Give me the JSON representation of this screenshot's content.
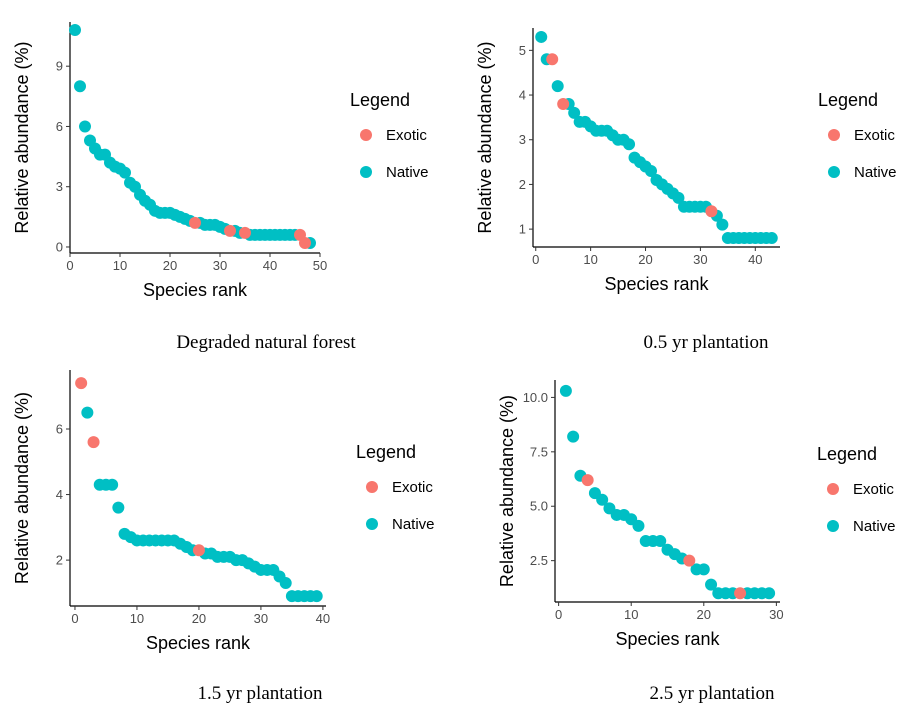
{
  "colors": {
    "exotic": "#F8766D",
    "native": "#00BFC4",
    "axis": "#000000",
    "tick_text": "#4D4D4D"
  },
  "legend": {
    "title": "Legend",
    "entries": [
      {
        "label": "Exotic",
        "color": "#F8766D"
      },
      {
        "label": "Native",
        "color": "#00BFC4"
      }
    ]
  },
  "chart_data": [
    {
      "type": "scatter",
      "caption": "Degraded natural forest",
      "xlabel": "Species rank",
      "ylabel": "Relative abundance (%)",
      "xlim": [
        0,
        50
      ],
      "ylim": [
        -0.3,
        11.2
      ],
      "xticks": [
        0,
        10,
        20,
        30,
        40,
        50
      ],
      "yticks": [
        0,
        3,
        6,
        9
      ],
      "legend_position": "right",
      "grid": false,
      "series": [
        {
          "name": "Native",
          "points": [
            [
              1,
              10.8
            ],
            [
              2,
              8.0
            ],
            [
              3,
              6.0
            ],
            [
              4,
              5.3
            ],
            [
              5,
              4.9
            ],
            [
              6,
              4.6
            ],
            [
              7,
              4.6
            ],
            [
              8,
              4.2
            ],
            [
              9,
              4.0
            ],
            [
              10,
              3.9
            ],
            [
              11,
              3.7
            ],
            [
              12,
              3.2
            ],
            [
              13,
              3.0
            ],
            [
              14,
              2.6
            ],
            [
              15,
              2.3
            ],
            [
              16,
              2.1
            ],
            [
              17,
              1.8
            ],
            [
              18,
              1.7
            ],
            [
              19,
              1.7
            ],
            [
              20,
              1.7
            ],
            [
              21,
              1.6
            ],
            [
              22,
              1.5
            ],
            [
              23,
              1.4
            ],
            [
              24,
              1.3
            ],
            [
              26,
              1.2
            ],
            [
              27,
              1.1
            ],
            [
              28,
              1.1
            ],
            [
              29,
              1.1
            ],
            [
              30,
              1.0
            ],
            [
              31,
              0.9
            ],
            [
              33,
              0.8
            ],
            [
              34,
              0.7
            ],
            [
              36,
              0.6
            ],
            [
              37,
              0.6
            ],
            [
              38,
              0.6
            ],
            [
              39,
              0.6
            ],
            [
              40,
              0.6
            ],
            [
              41,
              0.6
            ],
            [
              42,
              0.6
            ],
            [
              43,
              0.6
            ],
            [
              44,
              0.6
            ],
            [
              45,
              0.6
            ],
            [
              48,
              0.2
            ]
          ]
        },
        {
          "name": "Exotic",
          "points": [
            [
              25,
              1.2
            ],
            [
              32,
              0.8
            ],
            [
              35,
              0.7
            ],
            [
              46,
              0.6
            ],
            [
              47,
              0.2
            ]
          ]
        }
      ]
    },
    {
      "type": "scatter",
      "caption": "0.5 yr plantation",
      "xlabel": "Species rank",
      "ylabel": "Relative abundance (%)",
      "xlim": [
        -0.5,
        44.5
      ],
      "ylim": [
        0.6,
        5.5
      ],
      "xticks": [
        0,
        10,
        20,
        30,
        40
      ],
      "yticks": [
        1,
        2,
        3,
        4,
        5
      ],
      "legend_position": "right",
      "grid": false,
      "series": [
        {
          "name": "Native",
          "points": [
            [
              1,
              5.3
            ],
            [
              2,
              4.8
            ],
            [
              4,
              4.2
            ],
            [
              6,
              3.8
            ],
            [
              7,
              3.6
            ],
            [
              8,
              3.4
            ],
            [
              9,
              3.4
            ],
            [
              10,
              3.3
            ],
            [
              11,
              3.2
            ],
            [
              12,
              3.2
            ],
            [
              13,
              3.2
            ],
            [
              14,
              3.1
            ],
            [
              15,
              3.0
            ],
            [
              16,
              3.0
            ],
            [
              17,
              2.9
            ],
            [
              18,
              2.6
            ],
            [
              19,
              2.5
            ],
            [
              20,
              2.4
            ],
            [
              21,
              2.3
            ],
            [
              22,
              2.1
            ],
            [
              23,
              2.0
            ],
            [
              24,
              1.9
            ],
            [
              25,
              1.8
            ],
            [
              26,
              1.7
            ],
            [
              27,
              1.5
            ],
            [
              28,
              1.5
            ],
            [
              29,
              1.5
            ],
            [
              30,
              1.5
            ],
            [
              31,
              1.5
            ],
            [
              33,
              1.3
            ],
            [
              34,
              1.1
            ],
            [
              35,
              0.8
            ],
            [
              36,
              0.8
            ],
            [
              37,
              0.8
            ],
            [
              38,
              0.8
            ],
            [
              39,
              0.8
            ],
            [
              40,
              0.8
            ],
            [
              41,
              0.8
            ],
            [
              42,
              0.8
            ],
            [
              43,
              0.8
            ]
          ]
        },
        {
          "name": "Exotic",
          "points": [
            [
              3,
              4.8
            ],
            [
              5,
              3.8
            ],
            [
              32,
              1.4
            ]
          ]
        }
      ]
    },
    {
      "type": "scatter",
      "caption": "1.5 yr plantation",
      "xlabel": "Species rank",
      "ylabel": "Relative abundance (%)",
      "xlim": [
        -0.8,
        40.5
      ],
      "ylim": [
        0.6,
        7.8
      ],
      "xticks": [
        0,
        10,
        20,
        30,
        40
      ],
      "yticks": [
        2,
        4,
        6
      ],
      "legend_position": "right",
      "grid": false,
      "series": [
        {
          "name": "Native",
          "points": [
            [
              2,
              6.5
            ],
            [
              4,
              4.3
            ],
            [
              5,
              4.3
            ],
            [
              6,
              4.3
            ],
            [
              7,
              3.6
            ],
            [
              8,
              2.8
            ],
            [
              9,
              2.7
            ],
            [
              10,
              2.6
            ],
            [
              11,
              2.6
            ],
            [
              12,
              2.6
            ],
            [
              13,
              2.6
            ],
            [
              14,
              2.6
            ],
            [
              15,
              2.6
            ],
            [
              16,
              2.6
            ],
            [
              17,
              2.5
            ],
            [
              18,
              2.4
            ],
            [
              19,
              2.3
            ],
            [
              21,
              2.2
            ],
            [
              22,
              2.2
            ],
            [
              23,
              2.1
            ],
            [
              24,
              2.1
            ],
            [
              25,
              2.1
            ],
            [
              26,
              2.0
            ],
            [
              27,
              2.0
            ],
            [
              28,
              1.9
            ],
            [
              29,
              1.8
            ],
            [
              30,
              1.7
            ],
            [
              31,
              1.7
            ],
            [
              32,
              1.7
            ],
            [
              33,
              1.5
            ],
            [
              34,
              1.3
            ],
            [
              35,
              0.9
            ],
            [
              36,
              0.9
            ],
            [
              37,
              0.9
            ],
            [
              38,
              0.9
            ],
            [
              39,
              0.9
            ]
          ]
        },
        {
          "name": "Exotic",
          "points": [
            [
              1,
              7.4
            ],
            [
              3,
              5.6
            ],
            [
              20,
              2.3
            ]
          ]
        }
      ]
    },
    {
      "type": "scatter",
      "caption": "2.5 yr plantation",
      "xlabel": "Species rank",
      "ylabel": "Relative abundance (%)",
      "xlim": [
        -0.5,
        30.5
      ],
      "ylim": [
        0.6,
        10.8
      ],
      "xticks": [
        0,
        10,
        20,
        30
      ],
      "yticks": [
        2.5,
        5.0,
        7.5,
        10.0
      ],
      "legend_position": "right",
      "grid": false,
      "series": [
        {
          "name": "Native",
          "points": [
            [
              1,
              10.3
            ],
            [
              2,
              8.2
            ],
            [
              3,
              6.4
            ],
            [
              5,
              5.6
            ],
            [
              6,
              5.3
            ],
            [
              7,
              4.9
            ],
            [
              8,
              4.6
            ],
            [
              9,
              4.6
            ],
            [
              10,
              4.4
            ],
            [
              11,
              4.1
            ],
            [
              12,
              3.4
            ],
            [
              13,
              3.4
            ],
            [
              14,
              3.4
            ],
            [
              15,
              3.0
            ],
            [
              16,
              2.8
            ],
            [
              17,
              2.6
            ],
            [
              19,
              2.1
            ],
            [
              20,
              2.1
            ],
            [
              21,
              1.4
            ],
            [
              22,
              1.0
            ],
            [
              23,
              1.0
            ],
            [
              24,
              1.0
            ],
            [
              26,
              1.0
            ],
            [
              27,
              1.0
            ],
            [
              28,
              1.0
            ],
            [
              29,
              1.0
            ]
          ]
        },
        {
          "name": "Exotic",
          "points": [
            [
              4,
              6.2
            ],
            [
              18,
              2.5
            ],
            [
              25,
              1.0
            ]
          ]
        }
      ]
    }
  ]
}
